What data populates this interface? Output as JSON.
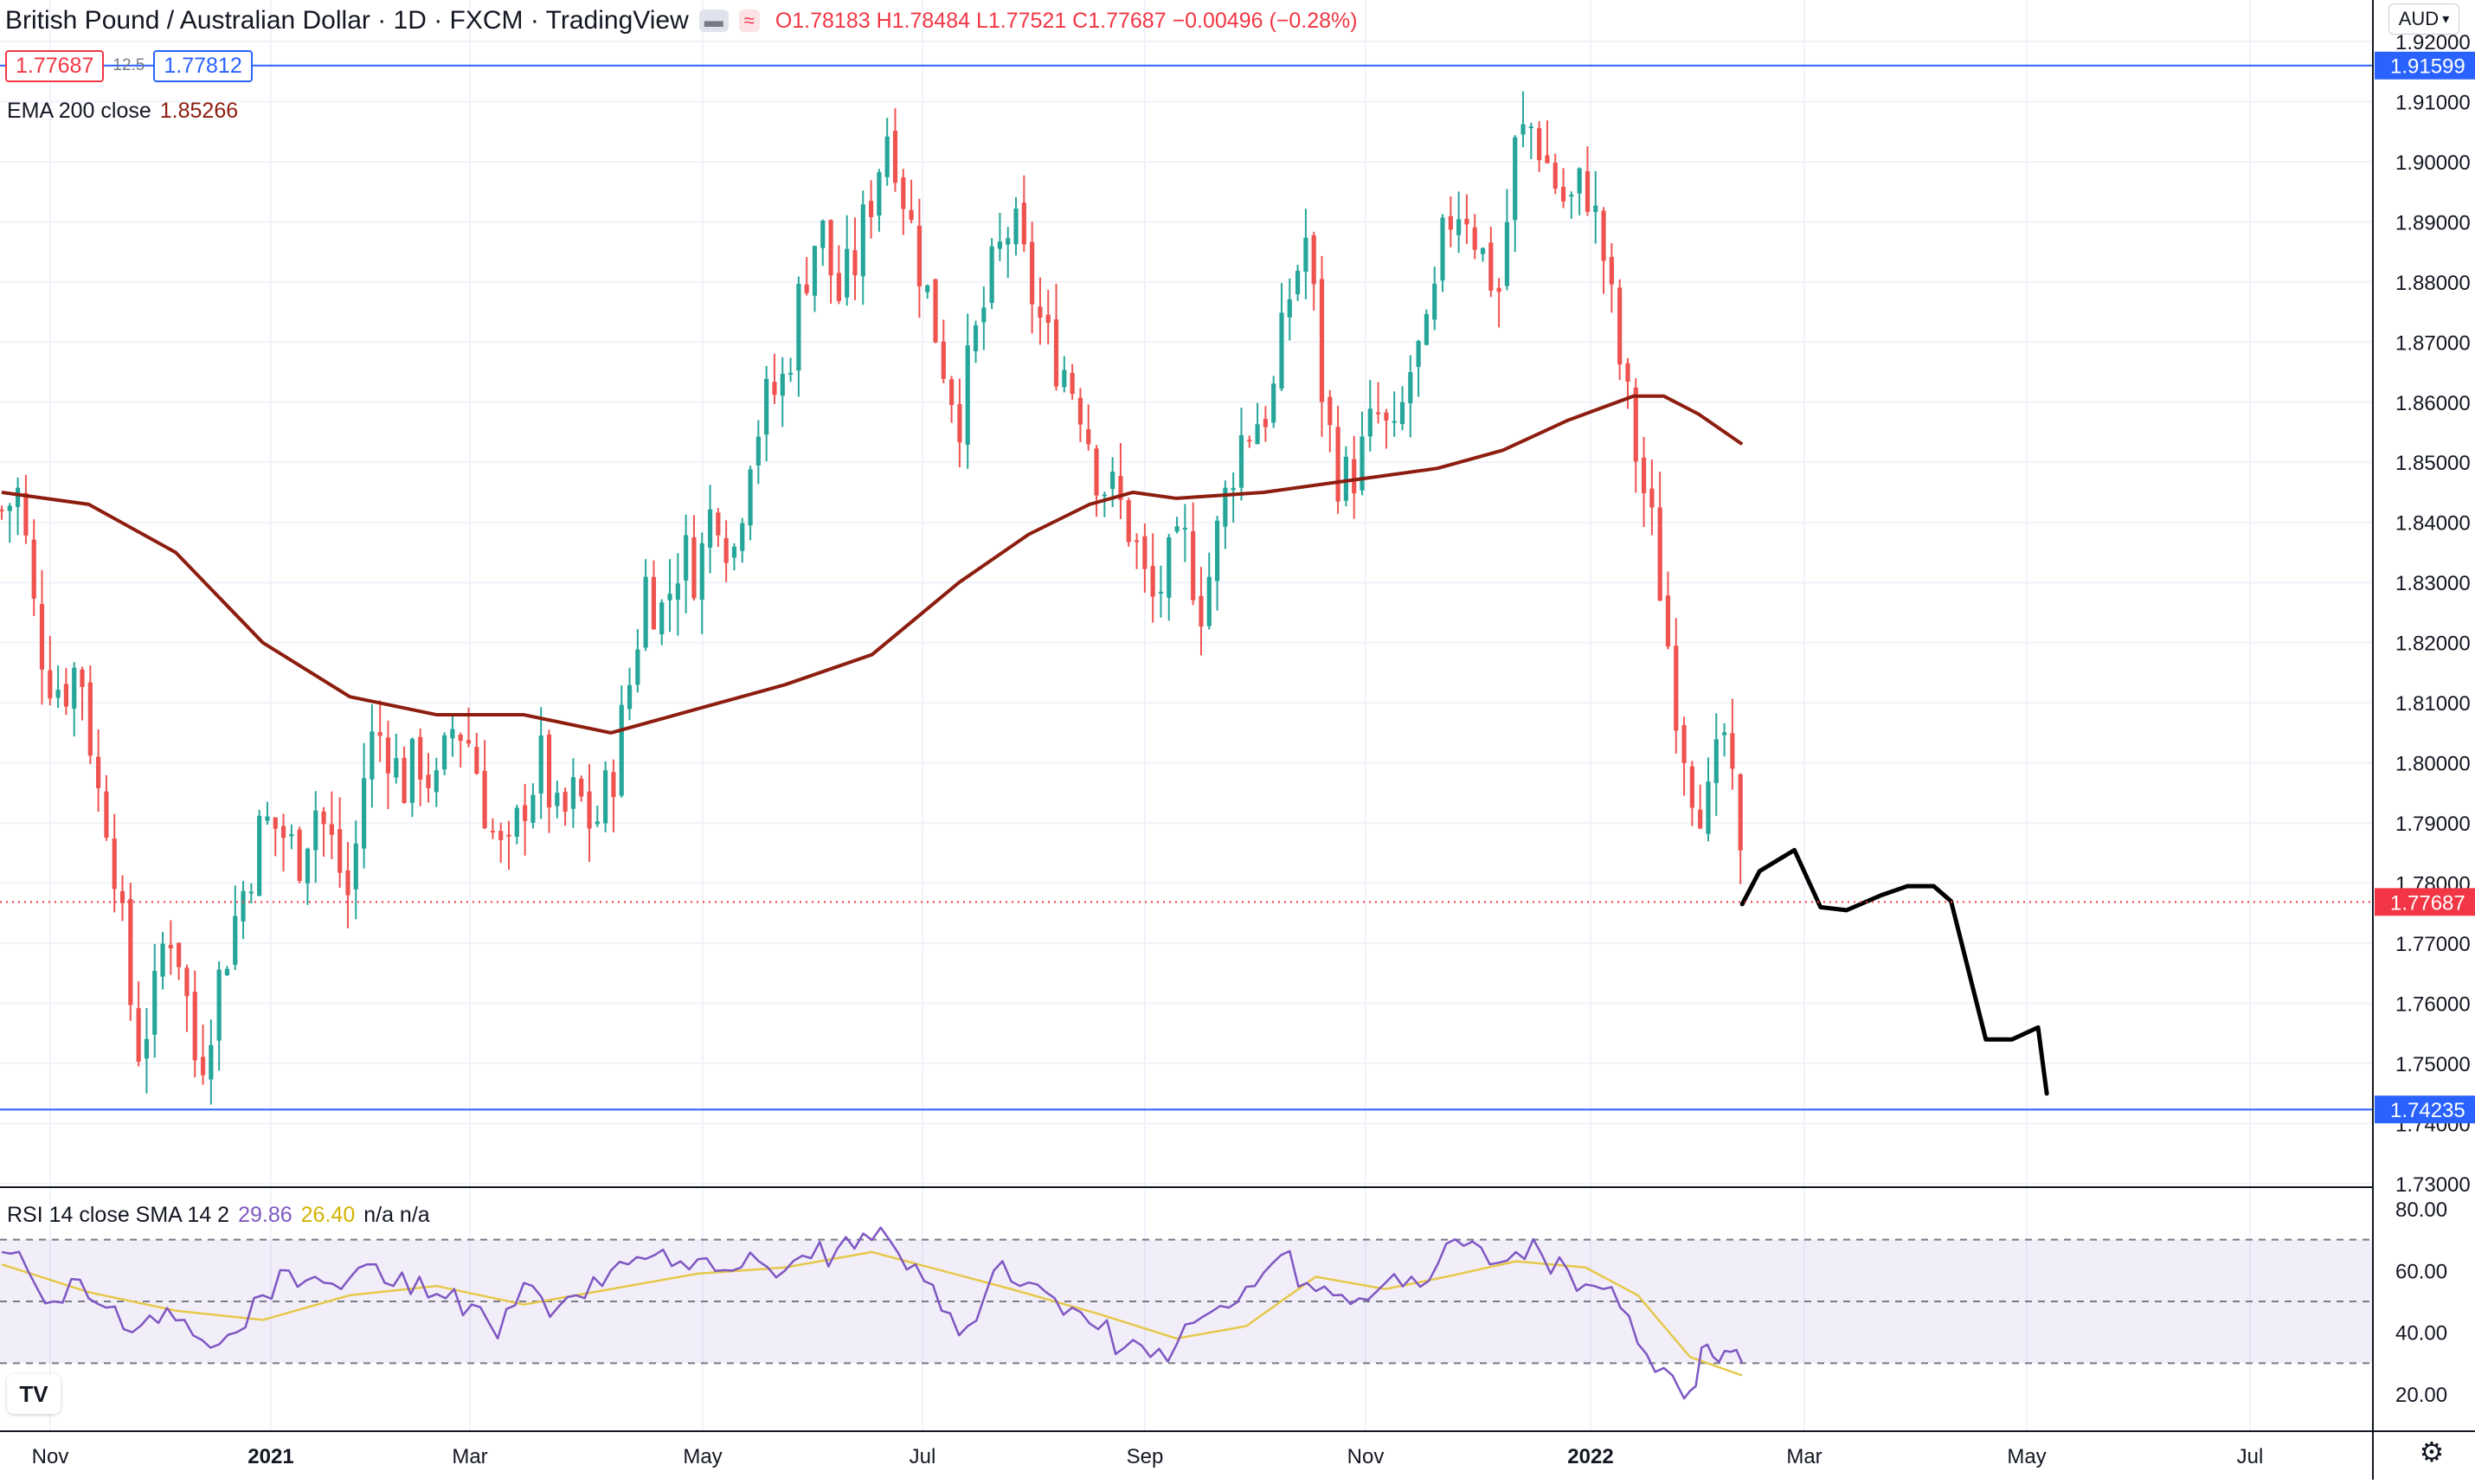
{
  "header": {
    "symbol_line": "British Pound / Australian Dollar · 1D · FXCM · TradingView",
    "ohlc": "O1.78183 H1.78484 L1.77521 C1.77687 −0.00496 (−0.28%)",
    "sell_price": "1.77687",
    "spread": "12.5",
    "buy_price": "1.77812",
    "currency": "AUD",
    "ema_label": "EMA 200 close",
    "ema_value": "1.85266",
    "rsi_label": "RSI 14 close SMA 14 2",
    "rsi_value": "29.86",
    "rsi_sma_value": "26.40",
    "rsi_na": "n/a n/a"
  },
  "chart_data": {
    "type": "candlestick",
    "symbol": "GBPAUD",
    "interval": "1D",
    "y_price_range": [
      1.73,
      1.92
    ],
    "y_price_ticks": [
      "1.92000",
      "1.91000",
      "1.90000",
      "1.89000",
      "1.88000",
      "1.87000",
      "1.86000",
      "1.85000",
      "1.84000",
      "1.83000",
      "1.82000",
      "1.81000",
      "1.80000",
      "1.79000",
      "1.78000",
      "1.77000",
      "1.76000",
      "1.75000",
      "1.74000",
      "1.73000"
    ],
    "x_labels": [
      "Nov",
      "2021",
      "Mar",
      "May",
      "Jul",
      "Sep",
      "Nov",
      "2022",
      "Mar",
      "May",
      "Jul"
    ],
    "horizontal_levels": [
      {
        "value": 1.91599,
        "label": "1.91599",
        "color": "#2962ff"
      },
      {
        "value": 1.74235,
        "label": "1.74235",
        "color": "#2962ff"
      }
    ],
    "last_price": {
      "value": 1.77687,
      "label": "1.77687",
      "color": "#f23645"
    },
    "up_color": "#26a69a",
    "down_color": "#ef5350",
    "ema_color": "#8d1d0f",
    "price_path": [
      [
        0,
        1.842
      ],
      [
        4,
        1.845
      ],
      [
        8,
        1.822
      ],
      [
        11,
        1.815
      ],
      [
        14,
        1.812
      ],
      [
        18,
        1.817
      ],
      [
        22,
        1.795
      ],
      [
        25,
        1.79
      ],
      [
        28,
        1.77
      ],
      [
        31,
        1.752
      ],
      [
        35,
        1.76
      ],
      [
        38,
        1.774
      ],
      [
        41,
        1.768
      ],
      [
        45,
        1.748
      ],
      [
        48,
        1.758
      ],
      [
        52,
        1.77
      ],
      [
        56,
        1.78
      ],
      [
        60,
        1.79
      ],
      [
        64,
        1.789
      ],
      [
        68,
        1.784
      ],
      [
        72,
        1.793
      ],
      [
        76,
        1.786
      ],
      [
        80,
        1.777
      ],
      [
        84,
        1.803
      ],
      [
        88,
        1.805
      ],
      [
        92,
        1.796
      ],
      [
        96,
        1.801
      ],
      [
        100,
        1.795
      ],
      [
        104,
        1.807
      ],
      [
        108,
        1.803
      ],
      [
        112,
        1.79
      ],
      [
        116,
        1.782
      ],
      [
        120,
        1.794
      ],
      [
        124,
        1.8
      ],
      [
        128,
        1.789
      ],
      [
        132,
        1.795
      ],
      [
        136,
        1.789
      ],
      [
        140,
        1.797
      ],
      [
        144,
        1.812
      ],
      [
        148,
        1.83
      ],
      [
        152,
        1.825
      ],
      [
        156,
        1.835
      ],
      [
        160,
        1.832
      ],
      [
        164,
        1.845
      ],
      [
        168,
        1.834
      ],
      [
        172,
        1.853
      ],
      [
        176,
        1.86
      ],
      [
        180,
        1.864
      ],
      [
        184,
        1.88
      ],
      [
        188,
        1.89
      ],
      [
        192,
        1.877
      ],
      [
        196,
        1.883
      ],
      [
        200,
        1.895
      ],
      [
        204,
        1.907
      ],
      [
        208,
        1.892
      ],
      [
        212,
        1.88
      ],
      [
        216,
        1.868
      ],
      [
        220,
        1.858
      ],
      [
        224,
        1.871
      ],
      [
        228,
        1.882
      ],
      [
        232,
        1.89
      ],
      [
        236,
        1.88
      ],
      [
        240,
        1.87
      ],
      [
        244,
        1.866
      ],
      [
        248,
        1.86
      ],
      [
        252,
        1.848
      ],
      [
        256,
        1.844
      ],
      [
        260,
        1.838
      ],
      [
        264,
        1.826
      ],
      [
        268,
        1.832
      ],
      [
        272,
        1.836
      ],
      [
        276,
        1.826
      ],
      [
        280,
        1.84
      ],
      [
        284,
        1.853
      ],
      [
        288,
        1.857
      ],
      [
        292,
        1.86
      ],
      [
        296,
        1.878
      ],
      [
        300,
        1.888
      ],
      [
        304,
        1.858
      ],
      [
        308,
        1.846
      ],
      [
        312,
        1.85
      ],
      [
        316,
        1.858
      ],
      [
        320,
        1.852
      ],
      [
        324,
        1.866
      ],
      [
        328,
        1.87
      ],
      [
        332,
        1.89
      ],
      [
        336,
        1.894
      ],
      [
        340,
        1.885
      ],
      [
        344,
        1.878
      ],
      [
        348,
        1.903
      ],
      [
        352,
        1.906
      ],
      [
        356,
        1.898
      ],
      [
        360,
        1.892
      ],
      [
        364,
        1.897
      ],
      [
        368,
        1.885
      ],
      [
        372,
        1.866
      ],
      [
        376,
        1.85
      ],
      [
        380,
        1.836
      ],
      [
        384,
        1.814
      ],
      [
        388,
        1.798
      ],
      [
        392,
        1.792
      ],
      [
        396,
        1.805
      ],
      [
        400,
        1.779
      ]
    ],
    "ema_path": [
      [
        0,
        1.845
      ],
      [
        20,
        1.843
      ],
      [
        40,
        1.835
      ],
      [
        60,
        1.82
      ],
      [
        80,
        1.811
      ],
      [
        100,
        1.808
      ],
      [
        120,
        1.808
      ],
      [
        140,
        1.805
      ],
      [
        160,
        1.809
      ],
      [
        180,
        1.813
      ],
      [
        200,
        1.818
      ],
      [
        220,
        1.83
      ],
      [
        236,
        1.838
      ],
      [
        250,
        1.843
      ],
      [
        260,
        1.845
      ],
      [
        270,
        1.844
      ],
      [
        290,
        1.845
      ],
      [
        310,
        1.847
      ],
      [
        330,
        1.849
      ],
      [
        345,
        1.852
      ],
      [
        360,
        1.857
      ],
      [
        375,
        1.861
      ],
      [
        382,
        1.861
      ],
      [
        390,
        1.858
      ],
      [
        400,
        1.853
      ]
    ],
    "projection_path": [
      [
        400,
        1.7765
      ],
      [
        404,
        1.782
      ],
      [
        412,
        1.7855
      ],
      [
        418,
        1.776
      ],
      [
        424,
        1.7755
      ],
      [
        432,
        1.778
      ],
      [
        438,
        1.7795
      ],
      [
        444,
        1.7795
      ],
      [
        448,
        1.777
      ],
      [
        456,
        1.754
      ],
      [
        462,
        1.754
      ],
      [
        468,
        1.756
      ],
      [
        470,
        1.745
      ]
    ],
    "rsi": {
      "label": "RSI 14 close SMA 14 2",
      "value": 29.86,
      "sma_value": 26.4,
      "y_range": [
        10,
        90
      ],
      "y_ticks": [
        "80.00",
        "60.00",
        "40.00",
        "20.00"
      ],
      "band_upper": 70,
      "band_middle": 50,
      "band_lower": 30,
      "rsi_color": "#7e57c2",
      "sma_color": "#e6c84a",
      "path": [
        [
          0,
          66
        ],
        [
          6,
          60
        ],
        [
          12,
          50
        ],
        [
          18,
          57
        ],
        [
          24,
          48
        ],
        [
          30,
          40
        ],
        [
          36,
          43
        ],
        [
          42,
          44
        ],
        [
          48,
          35
        ],
        [
          54,
          40
        ],
        [
          60,
          52
        ],
        [
          66,
          60
        ],
        [
          72,
          58
        ],
        [
          78,
          54
        ],
        [
          84,
          62
        ],
        [
          90,
          55
        ],
        [
          96,
          58
        ],
        [
          102,
          51
        ],
        [
          108,
          49
        ],
        [
          114,
          38
        ],
        [
          120,
          56
        ],
        [
          126,
          45
        ],
        [
          132,
          52
        ],
        [
          138,
          55
        ],
        [
          144,
          62
        ],
        [
          150,
          65
        ],
        [
          156,
          63
        ],
        [
          162,
          64
        ],
        [
          168,
          60
        ],
        [
          174,
          63
        ],
        [
          180,
          60
        ],
        [
          186,
          64
        ],
        [
          192,
          67
        ],
        [
          198,
          72
        ],
        [
          204,
          70
        ],
        [
          210,
          62
        ],
        [
          216,
          47
        ],
        [
          222,
          42
        ],
        [
          228,
          60
        ],
        [
          234,
          55
        ],
        [
          240,
          53
        ],
        [
          246,
          48
        ],
        [
          252,
          41
        ],
        [
          258,
          35
        ],
        [
          264,
          32
        ],
        [
          270,
          36
        ],
        [
          276,
          45
        ],
        [
          282,
          48
        ],
        [
          288,
          55
        ],
        [
          294,
          65
        ],
        [
          300,
          56
        ],
        [
          306,
          52
        ],
        [
          312,
          51
        ],
        [
          318,
          56
        ],
        [
          324,
          58
        ],
        [
          330,
          62
        ],
        [
          336,
          68
        ],
        [
          342,
          62
        ],
        [
          348,
          66
        ],
        [
          354,
          65
        ],
        [
          360,
          60
        ],
        [
          366,
          55
        ],
        [
          372,
          48
        ],
        [
          378,
          33
        ],
        [
          384,
          26
        ],
        [
          388,
          21
        ],
        [
          392,
          36
        ],
        [
          396,
          34
        ],
        [
          400,
          30
        ]
      ],
      "sma_path": [
        [
          0,
          62
        ],
        [
          20,
          53
        ],
        [
          40,
          47
        ],
        [
          60,
          44
        ],
        [
          80,
          52
        ],
        [
          100,
          55
        ],
        [
          120,
          49
        ],
        [
          140,
          54
        ],
        [
          160,
          59
        ],
        [
          180,
          61
        ],
        [
          200,
          66
        ],
        [
          216,
          60
        ],
        [
          232,
          54
        ],
        [
          252,
          46
        ],
        [
          270,
          38
        ],
        [
          286,
          42
        ],
        [
          302,
          58
        ],
        [
          318,
          54
        ],
        [
          332,
          58
        ],
        [
          348,
          63
        ],
        [
          364,
          61
        ],
        [
          376,
          52
        ],
        [
          388,
          32
        ],
        [
          400,
          26
        ]
      ]
    }
  }
}
